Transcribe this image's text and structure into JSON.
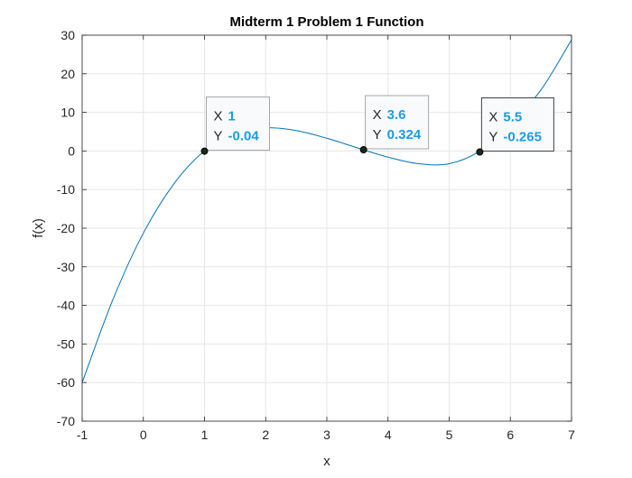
{
  "chart_data": {
    "type": "line",
    "title": "Midterm 1 Problem 1 Function",
    "xlabel": "x",
    "ylabel": "f(x)",
    "xlim": [
      -1,
      7
    ],
    "ylim": [
      -70,
      30
    ],
    "xticks": [
      -1,
      0,
      1,
      2,
      3,
      4,
      5,
      6,
      7
    ],
    "yticks": [
      -70,
      -60,
      -50,
      -40,
      -30,
      -20,
      -10,
      0,
      10,
      20,
      30
    ],
    "grid": true,
    "line_color": "#0072bd",
    "series": [
      {
        "x": [
          -1,
          -0.5,
          0,
          0.5,
          1,
          1.5,
          2,
          2.5,
          3,
          3.5,
          4,
          4.5,
          5,
          5.5,
          6,
          6.5,
          7
        ],
        "values": [
          -60,
          -38.6,
          -21.3,
          -8.5,
          0,
          4.4,
          6.0,
          5.3,
          3.3,
          0.8,
          -1.6,
          -3.3,
          -3.3,
          0,
          7.0,
          15.8,
          28.8
        ]
      }
    ],
    "datatips": [
      {
        "x_key": "X",
        "x_value": "1",
        "y_key": "Y",
        "y_value": "-0.04",
        "x": 1,
        "y": -0.04
      },
      {
        "x_key": "X",
        "x_value": "3.6",
        "y_key": "Y",
        "y_value": "0.324",
        "x": 3.6,
        "y": 0.324
      },
      {
        "x_key": "X",
        "x_value": "5.5",
        "y_key": "Y",
        "y_value": "-0.265",
        "x": 5.5,
        "y": -0.265
      }
    ],
    "datatip_value_color": "#1c9be6"
  }
}
